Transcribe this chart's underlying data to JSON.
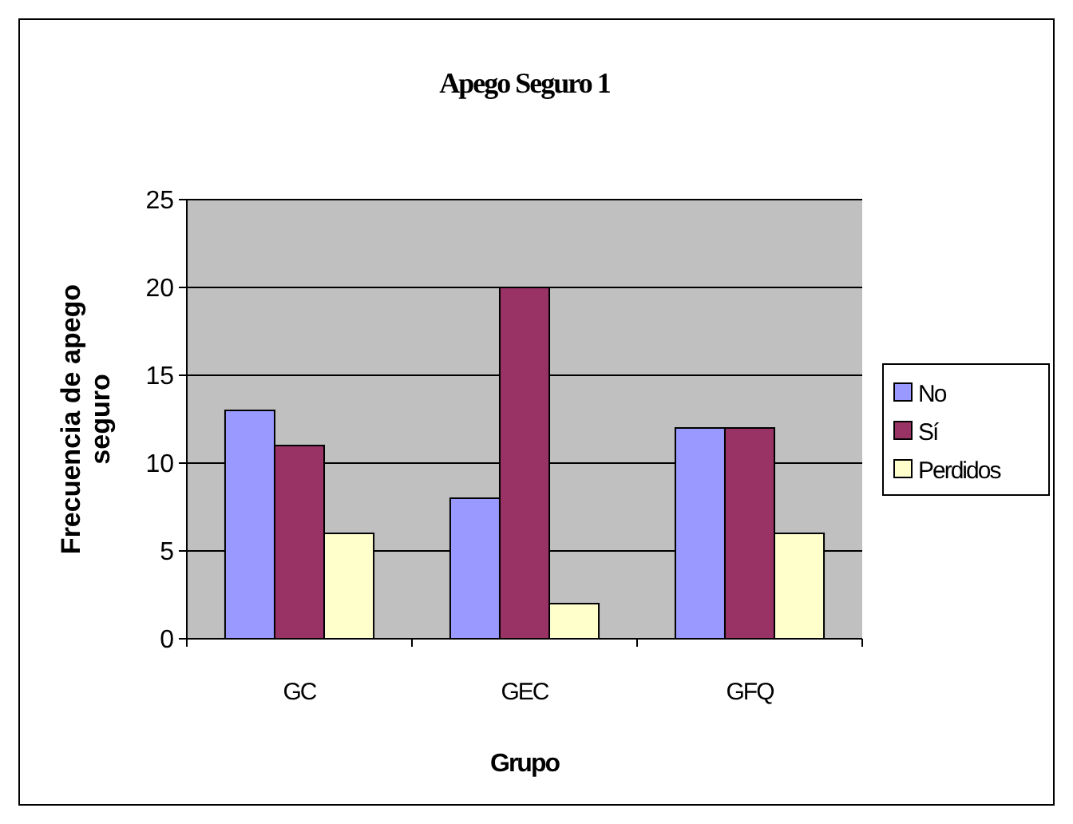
{
  "chart_data": {
    "type": "bar",
    "title": "Apego Seguro 1",
    "xlabel": "Grupo",
    "ylabel": "Frecuencia de apego seguro",
    "categories": [
      "GC",
      "GEC",
      "GFQ"
    ],
    "series": [
      {
        "name": "No",
        "color": "#9999ff",
        "values": [
          13,
          8,
          12
        ]
      },
      {
        "name": "Sí",
        "color": "#993366",
        "values": [
          11,
          20,
          12
        ]
      },
      {
        "name": "Perdidos",
        "color": "#ffffcc",
        "values": [
          6,
          2,
          6
        ]
      }
    ],
    "ylim": [
      0,
      25
    ],
    "yticks": [
      0,
      5,
      10,
      15,
      20,
      25
    ],
    "grid": "y",
    "legend": "right"
  }
}
